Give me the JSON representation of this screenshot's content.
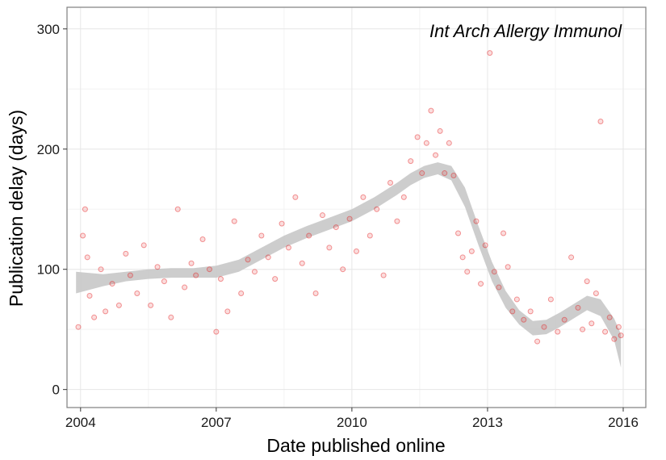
{
  "chart_data": {
    "type": "scatter",
    "title": "",
    "annotation": "Int Arch Allergy Immunol",
    "xlabel": "Date published online",
    "ylabel": "Publication delay (days)",
    "xlim": [
      2003.7,
      2016.5
    ],
    "ylim": [
      -15,
      318
    ],
    "x_ticks": [
      2004,
      2007,
      2010,
      2013,
      2016
    ],
    "x_tick_labels": [
      "2004",
      "2007",
      "2010",
      "2013",
      "2016"
    ],
    "y_ticks": [
      0,
      100,
      200,
      300
    ],
    "y_tick_labels": [
      "0",
      "100",
      "200",
      "300"
    ],
    "grid": true,
    "legend": "none",
    "colors": {
      "points": "#e41a1c",
      "smooth_line": "#c8c8c8",
      "grid_major": "#e6e6e6",
      "grid_minor": "#f3f3f3",
      "frame": "#7f7f7f"
    },
    "smooth": {
      "x": [
        2003.9,
        2004.5,
        2005.0,
        2005.5,
        2006.0,
        2006.5,
        2007.0,
        2007.5,
        2008.0,
        2008.5,
        2009.0,
        2009.5,
        2010.0,
        2010.5,
        2011.0,
        2011.3,
        2011.6,
        2011.9,
        2012.2,
        2012.5,
        2012.8,
        2013.1,
        2013.4,
        2013.7,
        2014.0,
        2014.3,
        2014.6,
        2014.9,
        2015.2,
        2015.5,
        2015.8,
        2015.95
      ],
      "y": [
        89,
        91,
        94,
        96,
        97,
        97,
        98,
        103,
        113,
        123,
        131,
        138,
        145,
        155,
        167,
        175,
        181,
        184,
        180,
        160,
        128,
        98,
        75,
        60,
        51,
        52,
        58,
        65,
        72,
        68,
        50,
        32
      ],
      "band_halfwidth": [
        9,
        5,
        4,
        4,
        4,
        4,
        5,
        5,
        5,
        5,
        5,
        5,
        5,
        5,
        5,
        5,
        5,
        5,
        6,
        8,
        8,
        8,
        7,
        6,
        6,
        6,
        6,
        6,
        6,
        7,
        9,
        14
      ]
    },
    "series": [
      {
        "x": [
          2003.95,
          2004.05,
          2004.1,
          2004.15,
          2004.2,
          2004.3,
          2004.45,
          2004.55,
          2004.7,
          2004.85,
          2005.0,
          2005.1,
          2005.25,
          2005.4,
          2005.55,
          2005.7,
          2005.85,
          2006.0,
          2006.15,
          2006.3,
          2006.45,
          2006.55,
          2006.7,
          2006.85,
          2007.0,
          2007.1,
          2007.25,
          2007.4,
          2007.55,
          2007.7,
          2007.85,
          2008.0,
          2008.15,
          2008.3,
          2008.45,
          2008.6,
          2008.75,
          2008.9,
          2009.05,
          2009.2,
          2009.35,
          2009.5,
          2009.65,
          2009.8,
          2009.95,
          2010.1,
          2010.25,
          2010.4,
          2010.55,
          2010.7,
          2010.85,
          2011.0,
          2011.15,
          2011.3,
          2011.45,
          2011.55,
          2011.65,
          2011.75,
          2011.85,
          2011.95,
          2012.05,
          2012.15,
          2012.25,
          2012.35,
          2012.45,
          2012.55,
          2012.65,
          2012.75,
          2012.85,
          2012.95,
          2013.05,
          2013.15,
          2013.25,
          2013.35,
          2013.45,
          2013.55,
          2013.65,
          2013.8,
          2013.95,
          2014.1,
          2014.25,
          2014.4,
          2014.55,
          2014.7,
          2014.85,
          2015.0,
          2015.1,
          2015.2,
          2015.3,
          2015.4,
          2015.5,
          2015.6,
          2015.7,
          2015.8,
          2015.9,
          2015.95
        ],
        "y": [
          52,
          128,
          150,
          110,
          78,
          60,
          100,
          65,
          88,
          70,
          113,
          95,
          80,
          120,
          70,
          102,
          90,
          60,
          150,
          85,
          105,
          95,
          125,
          100,
          48,
          92,
          65,
          140,
          80,
          108,
          98,
          128,
          110,
          92,
          138,
          118,
          160,
          105,
          128,
          80,
          145,
          118,
          135,
          100,
          142,
          115,
          160,
          128,
          150,
          95,
          172,
          140,
          160,
          190,
          210,
          180,
          205,
          232,
          195,
          215,
          180,
          205,
          178,
          130,
          110,
          98,
          115,
          140,
          88,
          120,
          280,
          98,
          85,
          130,
          102,
          65,
          75,
          58,
          65,
          40,
          52,
          75,
          48,
          58,
          110,
          68,
          50,
          90,
          55,
          80,
          223,
          48,
          60,
          42,
          52,
          45
        ]
      }
    ]
  }
}
